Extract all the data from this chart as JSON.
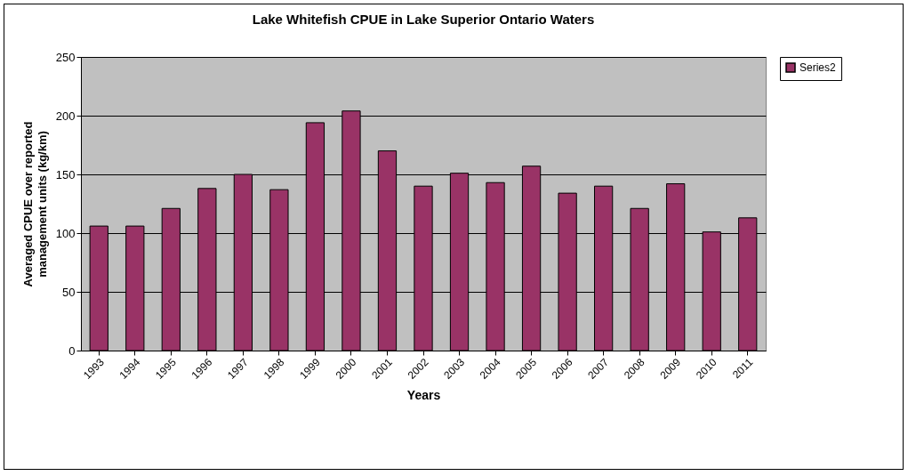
{
  "chart_data": {
    "type": "bar",
    "title": "Lake Whitefish CPUE in Lake Superior Ontario Waters",
    "xlabel": "Years",
    "ylabel": "Averaged CPUE over reported management units (kg/km)",
    "categories": [
      "1993",
      "1994",
      "1995",
      "1996",
      "1997",
      "1998",
      "1999",
      "2000",
      "2001",
      "2002",
      "2003",
      "2004",
      "2005",
      "2006",
      "2007",
      "2008",
      "2009",
      "2010",
      "2011"
    ],
    "series": [
      {
        "name": "Series2",
        "color": "#993366",
        "values": [
          106,
          106,
          121,
          138,
          150,
          137,
          194,
          204,
          170,
          140,
          151,
          143,
          157,
          134,
          140,
          121,
          142,
          101,
          113
        ]
      }
    ],
    "ylim": [
      0,
      250
    ],
    "yticks": [
      0,
      50,
      100,
      150,
      200,
      250
    ],
    "grid": "y",
    "legend": "right"
  }
}
